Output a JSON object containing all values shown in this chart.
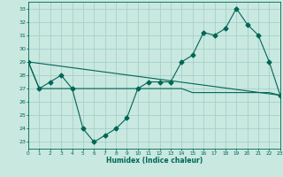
{
  "xlabel": "Humidex (Indice chaleur)",
  "xlim": [
    0,
    23
  ],
  "ylim": [
    22.5,
    33.5
  ],
  "yticks": [
    23,
    24,
    25,
    26,
    27,
    28,
    29,
    30,
    31,
    32,
    33
  ],
  "xticks": [
    0,
    1,
    2,
    3,
    4,
    5,
    6,
    7,
    8,
    9,
    10,
    11,
    12,
    13,
    14,
    15,
    16,
    17,
    18,
    19,
    20,
    21,
    22,
    23
  ],
  "background_color": "#c8e8e0",
  "grid_color": "#a0ccc4",
  "line_color": "#006655",
  "line1_x": [
    0,
    1,
    2,
    3,
    4,
    5,
    6,
    7,
    8,
    9,
    10,
    11,
    12,
    13,
    14,
    15,
    16,
    17,
    18,
    19,
    20,
    21,
    22,
    23
  ],
  "line1_y": [
    29,
    27,
    27.5,
    28,
    27,
    24,
    23,
    23.5,
    24,
    24.8,
    27,
    27.5,
    27.5,
    27.5,
    29,
    29.5,
    31.2,
    31,
    31.5,
    33,
    31.8,
    31,
    29,
    26.5
  ],
  "line2_x": [
    0,
    1,
    2,
    3,
    4,
    5,
    6,
    7,
    8,
    9,
    10,
    11,
    12,
    13,
    14,
    15,
    16,
    17,
    18,
    19,
    20,
    21,
    22,
    23
  ],
  "line2_y": [
    29,
    27,
    27,
    27,
    27,
    27,
    27,
    27,
    27,
    27,
    27,
    27,
    27,
    27,
    27,
    26.7,
    26.7,
    26.7,
    26.7,
    26.7,
    26.7,
    26.7,
    26.7,
    26.5
  ],
  "line3_x": [
    0,
    23
  ],
  "line3_y": [
    29,
    26.5
  ],
  "marker": "D",
  "markersize": 2.5
}
